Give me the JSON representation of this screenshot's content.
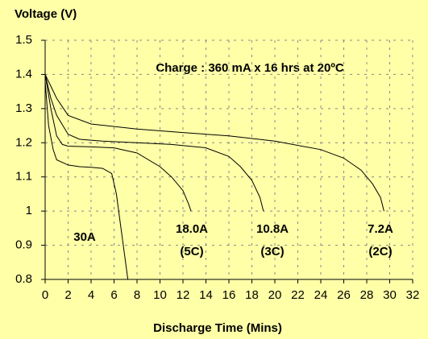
{
  "chart_data": {
    "type": "line",
    "y_axis_label": "Voltage (V)",
    "x_axis_label": "Discharge Time (Mins)",
    "annotation": "Charge : 360 mA x 16 hrs at 20ºC",
    "xlim": [
      0,
      32
    ],
    "xticks": [
      0,
      2,
      4,
      6,
      8,
      10,
      12,
      14,
      16,
      18,
      20,
      22,
      24,
      26,
      28,
      30,
      32
    ],
    "ylim": [
      0.8,
      1.5
    ],
    "yticks": [
      0.8,
      0.9,
      1,
      1.1,
      1.2,
      1.3,
      1.4,
      1.5
    ],
    "grid": true,
    "series": [
      {
        "name": "30A",
        "color": "#000000",
        "x": [
          0,
          0.3,
          0.7,
          1,
          2,
          3,
          4,
          5,
          5.8,
          6.2,
          6.6,
          7,
          7.2
        ],
        "values": [
          1.38,
          1.25,
          1.18,
          1.15,
          1.135,
          1.13,
          1.128,
          1.125,
          1.11,
          1.05,
          0.95,
          0.85,
          0.8
        ]
      },
      {
        "name": "18.0A",
        "rate": "(5C)",
        "color": "#000000",
        "x": [
          0,
          0.5,
          1,
          1.5,
          2,
          4,
          6,
          8,
          10,
          11,
          12,
          12.5,
          12.7
        ],
        "values": [
          1.4,
          1.3,
          1.22,
          1.195,
          1.19,
          1.188,
          1.185,
          1.17,
          1.13,
          1.1,
          1.06,
          1.02,
          1.0
        ]
      },
      {
        "name": "10.8A",
        "rate": "(3C)",
        "color": "#000000",
        "x": [
          0,
          0.5,
          1,
          2,
          3,
          5,
          8,
          11,
          14,
          16,
          17,
          18,
          18.7,
          19
        ],
        "values": [
          1.4,
          1.33,
          1.28,
          1.225,
          1.21,
          1.205,
          1.2,
          1.195,
          1.185,
          1.16,
          1.13,
          1.09,
          1.04,
          1.0
        ]
      },
      {
        "name": "7.2A",
        "rate": "(2C)",
        "color": "#000000",
        "x": [
          0,
          1,
          2,
          4,
          8,
          12,
          16,
          20,
          24,
          26,
          27.5,
          28.5,
          29.2,
          29.5
        ],
        "values": [
          1.4,
          1.33,
          1.28,
          1.255,
          1.24,
          1.23,
          1.22,
          1.205,
          1.18,
          1.155,
          1.12,
          1.08,
          1.04,
          1.0
        ]
      }
    ]
  }
}
